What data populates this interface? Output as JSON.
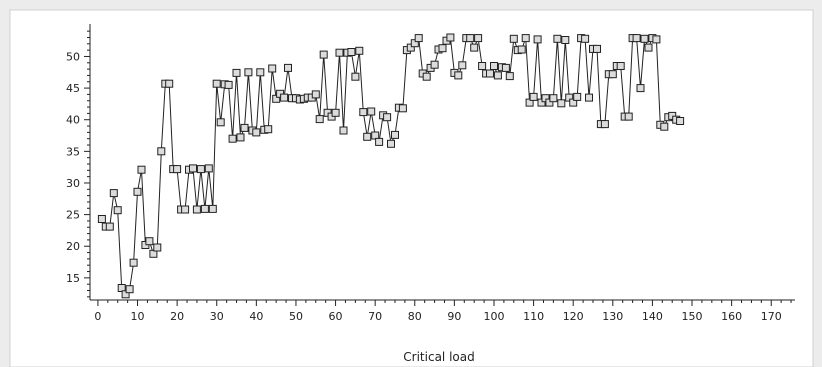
{
  "chart_data": {
    "type": "line",
    "title": "",
    "xlabel": "Critical load",
    "ylabel": "",
    "xlim": [
      -2,
      176
    ],
    "ylim": [
      11.5,
      54.5
    ],
    "xticks": [
      0,
      10,
      20,
      30,
      40,
      50,
      60,
      70,
      80,
      90,
      100,
      110,
      120,
      130,
      140,
      150,
      160,
      170
    ],
    "yticks": [
      15,
      20,
      25,
      30,
      35,
      40,
      45,
      50
    ],
    "grid": false,
    "legend": "none",
    "marker": "square",
    "colors": {
      "line": "#222222",
      "marker_edge": "#222222",
      "marker_fill": "#dcdcdc",
      "axis": "#222222",
      "plot_bg": "#ffffff",
      "page_bg": "#ececec"
    },
    "series": [
      {
        "x": [
          1,
          2,
          3,
          4,
          5,
          6,
          7,
          8,
          9,
          10,
          11,
          12,
          13,
          14,
          15,
          16,
          17,
          18,
          19,
          20,
          21,
          22,
          23,
          24,
          25,
          26,
          27,
          28,
          29,
          30,
          31,
          32,
          33,
          34,
          35,
          36,
          37,
          38,
          39,
          40,
          41,
          42,
          43,
          44,
          45,
          46,
          47,
          48,
          49,
          50,
          51,
          52,
          53,
          54,
          55,
          56,
          57,
          58,
          59,
          60,
          61,
          62,
          63,
          64,
          65,
          66,
          67,
          68,
          69,
          70,
          71,
          72,
          73,
          74,
          75,
          76,
          77,
          78,
          79,
          80,
          81,
          82,
          83,
          84,
          85,
          86,
          87,
          88,
          89,
          90,
          91,
          92,
          93,
          94,
          95,
          96,
          97,
          98,
          99,
          100,
          101,
          102,
          103,
          104,
          105,
          106,
          107,
          108,
          109,
          110,
          111,
          112,
          113,
          114,
          115,
          116,
          117,
          118,
          119,
          120,
          121,
          122,
          123,
          124,
          125,
          126,
          127,
          128,
          129,
          130,
          131,
          132,
          133,
          134,
          135,
          136,
          137,
          138,
          139,
          140,
          141,
          142,
          143,
          144,
          145,
          146,
          147
        ],
        "y": [
          24.3,
          23.1,
          23.1,
          28.4,
          25.7,
          13.4,
          12.4,
          13.2,
          17.4,
          28.6,
          32.1,
          20.2,
          20.8,
          18.8,
          19.8,
          35.0,
          45.7,
          45.7,
          32.2,
          32.2,
          25.8,
          25.8,
          32.1,
          32.3,
          25.8,
          32.2,
          25.9,
          32.3,
          25.9,
          45.7,
          39.6,
          45.6,
          45.5,
          37.0,
          47.4,
          37.2,
          38.7,
          47.5,
          38.3,
          38.0,
          47.5,
          38.4,
          38.5,
          48.1,
          43.3,
          44.1,
          43.5,
          48.2,
          43.4,
          43.4,
          43.2,
          43.3,
          43.5,
          43.5,
          44.0,
          40.1,
          50.3,
          41.1,
          40.5,
          41.1,
          50.6,
          38.3,
          50.6,
          50.7,
          46.8,
          50.9,
          41.2,
          37.3,
          41.3,
          37.5,
          36.5,
          40.7,
          40.4,
          36.2,
          37.6,
          41.9,
          41.8,
          51.0,
          51.4,
          52.1,
          52.9,
          47.3,
          46.8,
          48.2,
          48.7,
          51.1,
          51.3,
          52.5,
          53.0,
          47.4,
          47.0,
          48.6,
          52.9,
          52.9,
          51.4,
          52.9,
          48.5,
          47.3,
          47.3,
          48.5,
          47.0,
          48.3,
          48.2,
          46.9,
          52.8,
          51.0,
          51.1,
          52.9,
          42.7,
          43.6,
          52.7,
          42.7,
          43.4,
          42.7,
          43.4,
          52.8,
          42.6,
          52.6,
          43.5,
          42.7,
          43.6,
          52.9,
          52.8,
          43.5,
          51.2,
          51.2,
          39.3,
          39.3,
          47.2,
          47.2,
          48.5,
          48.5,
          40.5,
          40.5,
          52.9,
          52.9,
          45.0,
          52.8,
          51.4,
          52.9,
          52.7,
          39.2,
          38.9,
          40.4,
          40.6,
          40.0,
          39.8
        ]
      }
    ]
  }
}
